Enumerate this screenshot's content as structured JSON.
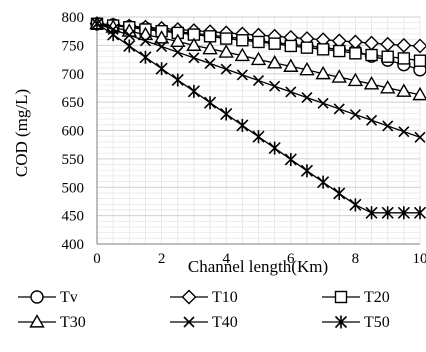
{
  "chart_data": {
    "type": "line",
    "title": "",
    "xlabel": "Channel length(Km)",
    "ylabel": "COD (mg/L)",
    "xlim": [
      0,
      10
    ],
    "ylim": [
      400,
      800
    ],
    "xticks": [
      0,
      2,
      4,
      6,
      8,
      10
    ],
    "xtick_labels": [
      "0",
      "2",
      "4",
      "6",
      "8",
      "10"
    ],
    "yticks": [
      400,
      450,
      500,
      550,
      600,
      650,
      700,
      750,
      800
    ],
    "ytick_labels": [
      "400",
      "450",
      "500",
      "550",
      "600",
      "650",
      "700",
      "750",
      "800"
    ],
    "grid": true,
    "legend_position": "bottom",
    "x": [
      0,
      0.5,
      1,
      1.5,
      2,
      2.5,
      3,
      3.5,
      4,
      4.5,
      5,
      5.5,
      6,
      6.5,
      7,
      7.5,
      8,
      8.5,
      9,
      9.5,
      10
    ],
    "series": [
      {
        "name": "Tv",
        "marker": "circle",
        "values": [
          788,
          786,
          783,
          780,
          777,
          774,
          771,
          768,
          765,
          762,
          758,
          755,
          752,
          749,
          746,
          743,
          740,
          731,
          724,
          716,
          707
        ]
      },
      {
        "name": "T10",
        "marker": "diamond",
        "values": [
          788,
          786,
          784,
          782,
          780,
          778,
          776,
          774,
          772,
          770,
          768,
          766,
          764,
          762,
          760,
          758,
          756,
          754,
          752,
          750,
          749
        ]
      },
      {
        "name": "T20",
        "marker": "square",
        "values": [
          788,
          785,
          782,
          778,
          775,
          772,
          769,
          766,
          762,
          759,
          756,
          753,
          749,
          746,
          743,
          740,
          736,
          733,
          730,
          727,
          723
        ]
      },
      {
        "name": "T30",
        "marker": "triangle",
        "values": [
          788,
          782,
          775,
          769,
          763,
          757,
          750,
          744,
          738,
          732,
          725,
          719,
          713,
          707,
          700,
          694,
          688,
          682,
          675,
          669,
          663
        ]
      },
      {
        "name": "T40",
        "marker": "x",
        "values": [
          788,
          778,
          768,
          758,
          748,
          738,
          728,
          718,
          708,
          698,
          688,
          678,
          668,
          658,
          648,
          638,
          628,
          618,
          608,
          598,
          588
        ]
      },
      {
        "name": "T50",
        "marker": "asterisk",
        "values": [
          788,
          769,
          749,
          729,
          709,
          689,
          669,
          649,
          629,
          609,
          589,
          569,
          549,
          529,
          509,
          489,
          469,
          455,
          455,
          455,
          455
        ]
      }
    ]
  }
}
